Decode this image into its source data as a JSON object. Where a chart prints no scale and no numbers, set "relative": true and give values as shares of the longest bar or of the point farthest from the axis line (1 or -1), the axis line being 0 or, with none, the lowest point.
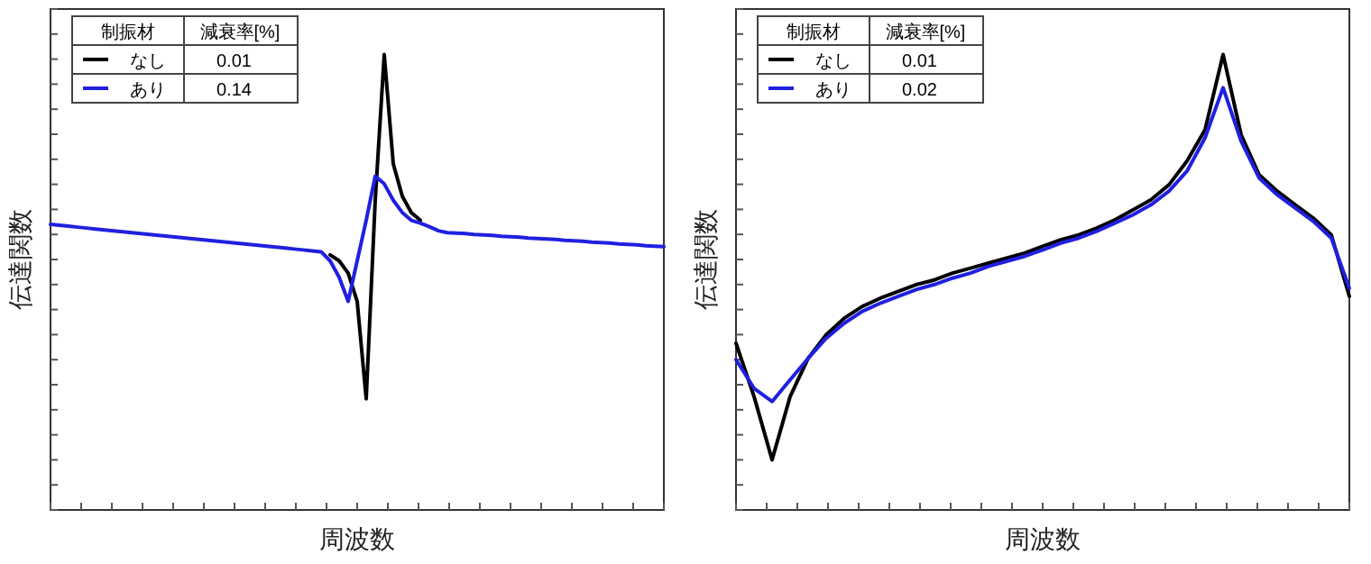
{
  "chart_data": [
    {
      "type": "line",
      "relative": true,
      "xlabel": "周波数",
      "ylabel": "伝達関数",
      "legend": "top left",
      "legend_title": "制振材",
      "annotations": [
        "減衰率[%]",
        "0.01",
        "0.14"
      ],
      "categories": [
        null,
        null,
        null,
        null,
        null,
        null,
        null,
        null,
        null,
        null,
        null,
        null,
        null,
        null,
        null,
        null,
        null,
        null,
        null,
        null,
        null,
        null,
        null,
        null,
        null,
        null,
        null,
        null,
        null,
        null,
        null,
        null,
        null,
        null,
        null,
        null,
        null,
        null,
        null,
        null,
        null,
        null,
        null,
        null,
        null,
        null,
        null,
        null,
        null,
        null,
        null,
        null,
        null,
        null,
        null,
        null,
        null,
        null,
        null,
        null,
        null,
        null,
        null,
        null,
        null,
        null,
        null,
        null,
        null
      ],
      "series": [
        {
          "name": "なし",
          "color": "#000000",
          "values": [
            null,
            null,
            null,
            null,
            null,
            null,
            null,
            null,
            null,
            null,
            null,
            null,
            null,
            null,
            null,
            null,
            null,
            null,
            null,
            null,
            null,
            null,
            null,
            null,
            null,
            null,
            null,
            null,
            null,
            null,
            null,
            0.56,
            0.547,
            0.52,
            0.458,
            0.244,
            0.68,
            1.0,
            0.76,
            0.689,
            0.653,
            0.636,
            null,
            null,
            null,
            null,
            null,
            null,
            null,
            null,
            null,
            null,
            null,
            null,
            null,
            null,
            null,
            null,
            null,
            null,
            null,
            null,
            null,
            null,
            null,
            null,
            null,
            null,
            null
          ]
        },
        {
          "name": "あり",
          "color": "#2020e0",
          "values": [
            0.627,
            0.625,
            0.623,
            0.621,
            0.619,
            0.617,
            0.615,
            0.613,
            0.611,
            0.609,
            0.607,
            0.605,
            0.603,
            0.601,
            0.599,
            0.597,
            0.595,
            0.593,
            0.591,
            0.589,
            0.587,
            0.585,
            0.583,
            0.581,
            0.579,
            0.577,
            0.575,
            0.573,
            0.571,
            0.569,
            0.567,
            0.547,
            0.511,
            0.458,
            0.547,
            0.636,
            0.733,
            0.716,
            0.68,
            0.653,
            0.636,
            0.63,
            0.622,
            0.613,
            0.609,
            0.608,
            0.607,
            0.605,
            0.604,
            0.603,
            0.601,
            0.6,
            0.599,
            0.597,
            0.596,
            0.595,
            0.594,
            0.592,
            0.591,
            0.59,
            0.588,
            0.587,
            0.586,
            0.584,
            0.583,
            0.582,
            0.58,
            0.579,
            0.578
          ]
        }
      ]
    },
    {
      "type": "line",
      "relative": true,
      "xlabel": "周波数",
      "ylabel": "伝達関数",
      "legend": "top left",
      "legend_title": "制振材",
      "annotations": [
        "減衰率[%]",
        "0.01",
        "0.02"
      ],
      "categories": [
        null,
        null,
        null,
        null,
        null,
        null,
        null,
        null,
        null,
        null,
        null,
        null,
        null,
        null,
        null,
        null,
        null,
        null,
        null,
        null,
        null,
        null,
        null,
        null,
        null,
        null,
        null,
        null,
        null,
        null,
        null,
        null,
        null,
        null,
        null
      ],
      "series": [
        {
          "name": "なし",
          "color": "#000000",
          "values": [
            0.366,
            0.249,
            0.11,
            0.249,
            0.333,
            0.385,
            0.421,
            0.447,
            0.465,
            0.48,
            0.495,
            0.505,
            0.52,
            0.531,
            0.542,
            0.553,
            0.564,
            0.579,
            0.593,
            0.604,
            0.619,
            0.637,
            0.659,
            0.681,
            0.714,
            0.766,
            0.835,
            1.0,
            0.824,
            0.736,
            0.7,
            0.67,
            0.641,
            0.604,
            0.469
          ]
        },
        {
          "name": "あり",
          "color": "#2020e0",
          "values": [
            0.33,
            0.267,
            0.238,
            0.286,
            0.333,
            0.377,
            0.41,
            0.436,
            0.454,
            0.469,
            0.484,
            0.495,
            0.509,
            0.52,
            0.535,
            0.546,
            0.557,
            0.571,
            0.586,
            0.597,
            0.612,
            0.63,
            0.648,
            0.67,
            0.7,
            0.744,
            0.817,
            0.927,
            0.81,
            0.729,
            0.692,
            0.663,
            0.634,
            0.597,
            0.487
          ]
        }
      ]
    }
  ]
}
